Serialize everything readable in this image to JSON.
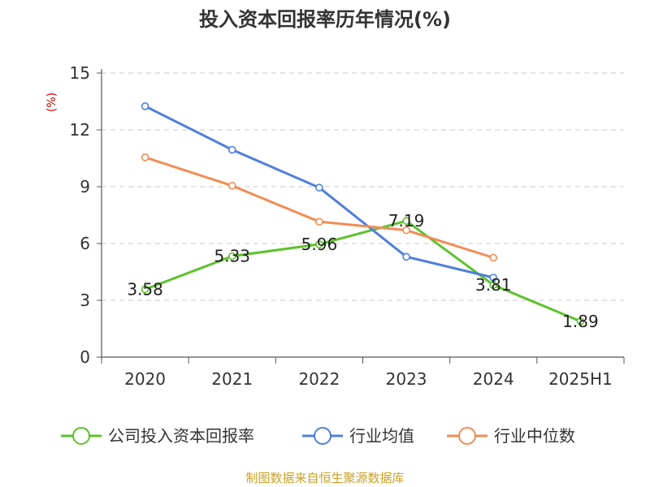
{
  "chart_data": {
    "type": "line",
    "title": "投入资本回报率历年情况(%)",
    "ylabel": "(%)",
    "categories": [
      "2020",
      "2021",
      "2022",
      "2023",
      "2024",
      "2025H1"
    ],
    "ylim": [
      0,
      15
    ],
    "yticks": [
      0,
      3,
      6,
      9,
      12,
      15
    ],
    "grid": "horizontal-dashed",
    "legend_position": "bottom",
    "series": [
      {
        "name": "公司投入资本回报率",
        "color": "#5cc22b",
        "values": [
          3.58,
          5.33,
          5.96,
          7.19,
          3.81,
          1.89
        ],
        "labels": [
          "3.58",
          "5.33",
          "5.96",
          "7.19",
          "3.81",
          "1.89"
        ]
      },
      {
        "name": "行业均值",
        "color": "#4f7fdc",
        "values": [
          13.25,
          10.95,
          8.95,
          5.3,
          4.2,
          null
        ]
      },
      {
        "name": "行业中位数",
        "color": "#f28c55",
        "values": [
          10.55,
          9.05,
          7.15,
          6.7,
          5.25,
          null
        ]
      }
    ]
  },
  "footer": {
    "source": "制图数据来自恒生聚源数据库"
  }
}
